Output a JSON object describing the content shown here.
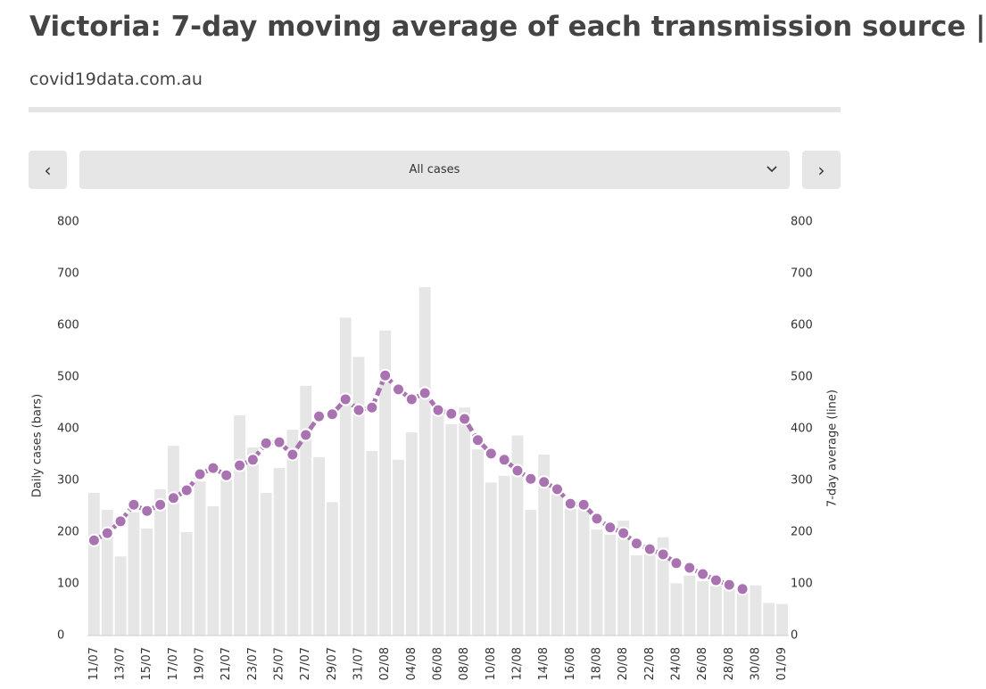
{
  "header": {
    "title": "Victoria: 7-day moving average of each transmission source |",
    "source": "covid19data.com.au"
  },
  "controls": {
    "prev": "‹",
    "next": "›",
    "selected": "All cases"
  },
  "chart_data": {
    "type": "combo",
    "y_label": "Daily cases (bars)",
    "y2_label": "7-day average (line)",
    "categories": [
      "11/07",
      null,
      "13/07",
      null,
      "15/07",
      null,
      "17/07",
      null,
      "19/07",
      null,
      "21/07",
      null,
      "23/07",
      null,
      "25/07",
      null,
      "27/07",
      null,
      "29/07",
      null,
      "31/07",
      null,
      "02/08",
      null,
      "04/08",
      null,
      "06/08",
      null,
      "08/08",
      null,
      "10/08",
      null,
      "12/08",
      null,
      "14/08",
      null,
      "16/08",
      null,
      "18/08",
      null,
      "20/08",
      null,
      "22/08",
      null,
      "24/08",
      null,
      "26/08",
      null,
      "28/08",
      null,
      "30/08",
      null,
      "01/09"
    ],
    "series": [
      {
        "name": "Daily cases",
        "type": "bar",
        "axis": "y",
        "color": "#e6e6e6",
        "values": [
          276,
          243,
          153,
          238,
          207,
          283,
          367,
          200,
          298,
          250,
          319,
          426,
          364,
          276,
          324,
          398,
          483,
          345,
          258,
          615,
          539,
          357,
          590,
          340,
          393,
          674,
          433,
          409,
          441,
          360,
          296,
          309,
          387,
          243,
          350,
          273,
          245,
          260,
          205,
          195,
          222,
          155,
          157,
          190,
          101,
          116,
          105,
          96,
          91,
          82,
          97,
          63,
          61
        ]
      },
      {
        "name": "7-day average",
        "type": "line",
        "axis": "y2",
        "color": "#a972b0",
        "values": [
          184,
          198,
          221,
          253,
          241,
          253,
          266,
          281,
          312,
          324,
          310,
          329,
          340,
          372,
          374,
          350,
          388,
          424,
          428,
          457,
          436,
          441,
          503,
          476,
          457,
          469,
          436,
          429,
          419,
          378,
          352,
          340,
          319,
          303,
          297,
          283,
          255,
          253,
          226,
          209,
          198,
          178,
          167,
          157,
          140,
          131,
          119,
          107,
          98,
          90,
          null,
          null,
          null
        ]
      }
    ],
    "ylim": [
      0,
      800
    ],
    "yticks": [
      0,
      100,
      200,
      300,
      400,
      500,
      600,
      700,
      800
    ],
    "y2lim": [
      0,
      800
    ],
    "y2ticks": [
      0,
      100,
      200,
      300,
      400,
      500,
      600,
      700,
      800
    ],
    "grid": false
  }
}
